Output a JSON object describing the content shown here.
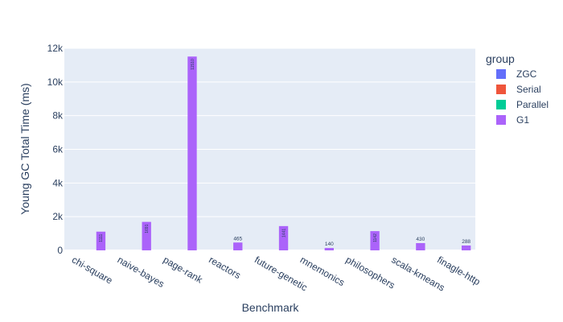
{
  "chart_data": {
    "type": "bar",
    "title": "",
    "xlabel": "Benchmark",
    "ylabel": "Young GC Total Time (ms)",
    "ylim": [
      0,
      12000
    ],
    "yticks": [
      0,
      2000,
      4000,
      6000,
      8000,
      10000,
      12000
    ],
    "ytick_labels": [
      "0",
      "2k",
      "4k",
      "6k",
      "8k",
      "10k",
      "12k"
    ],
    "grid": true,
    "legend_title": "group",
    "legend_position": "right",
    "categories": [
      "chi-square",
      "naive-bayes",
      "page-rank",
      "reactors",
      "future-genetic",
      "mnemonics",
      "philosophers",
      "scala-kmeans",
      "finagle-http"
    ],
    "series": [
      {
        "name": "ZGC",
        "color": "#636efa",
        "values": [
          0,
          0,
          0,
          0,
          0,
          0,
          0,
          0,
          0
        ]
      },
      {
        "name": "Serial",
        "color": "#EF553B",
        "values": [
          0,
          0,
          0,
          0,
          0,
          0,
          0,
          0,
          0
        ]
      },
      {
        "name": "Parallel",
        "color": "#00cc96",
        "values": [
          0,
          0,
          0,
          0,
          0,
          0,
          0,
          0,
          0
        ]
      },
      {
        "name": "G1",
        "color": "#ab63fa",
        "values": [
          1111,
          1691,
          11510,
          465,
          1441,
          140,
          1142,
          430,
          288
        ],
        "labels": [
          "1111",
          "1691",
          "11510",
          "465",
          "1441",
          "140",
          "1142",
          "430",
          "288"
        ]
      }
    ]
  }
}
